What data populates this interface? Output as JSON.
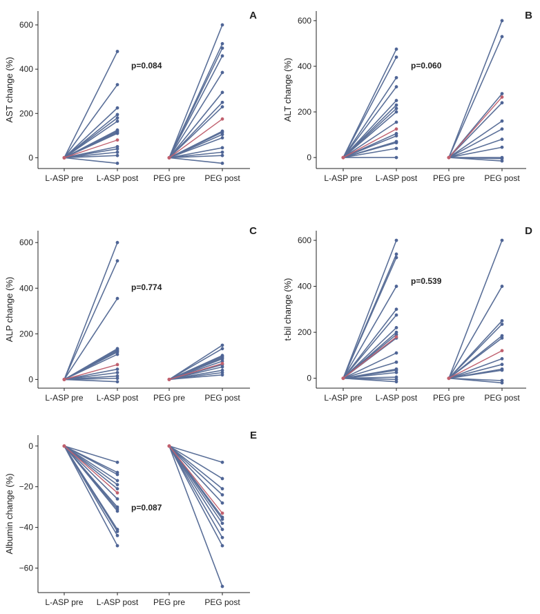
{
  "figure": {
    "line_color": "#5a6f98",
    "highlight_color": "#c0606e",
    "point_color": "#4f6596"
  },
  "chart_data": [
    {
      "type": "line",
      "panel_label": "A",
      "title": "",
      "xlabel": "",
      "ylabel": "AST change (%)",
      "categories": [
        "L-ASP pre",
        "L-ASP post",
        "PEG pre",
        "PEG post"
      ],
      "ylim": [
        -30,
        650
      ],
      "yticks": [
        0,
        200,
        400,
        600
      ],
      "pvalue": "p=0.084",
      "lasp_pre": 0,
      "lasp_post": [
        480,
        330,
        225,
        195,
        180,
        165,
        125,
        120,
        115,
        110,
        80,
        50,
        40,
        25,
        10,
        -25
      ],
      "lasp_highlight_index": 10,
      "peg_pre": 0,
      "peg_post": [
        600,
        515,
        495,
        460,
        385,
        295,
        250,
        230,
        175,
        120,
        115,
        105,
        90,
        45,
        25,
        10,
        -25
      ],
      "peg_highlight_index": 8
    },
    {
      "type": "line",
      "panel_label": "B",
      "title": "",
      "xlabel": "",
      "ylabel": "ALT change (%)",
      "categories": [
        "L-ASP pre",
        "L-ASP post",
        "PEG pre",
        "PEG post"
      ],
      "ylim": [
        -30,
        630
      ],
      "yticks": [
        0,
        200,
        400,
        600
      ],
      "pvalue": "p=0.060",
      "lasp_pre": 0,
      "lasp_post": [
        475,
        440,
        350,
        310,
        250,
        230,
        215,
        200,
        155,
        125,
        105,
        95,
        70,
        65,
        40,
        0
      ],
      "lasp_highlight_index": 9,
      "peg_pre": 0,
      "peg_post": [
        600,
        530,
        280,
        265,
        240,
        160,
        125,
        80,
        45,
        0,
        -5,
        -15
      ],
      "peg_highlight_index": 3
    },
    {
      "type": "line",
      "panel_label": "C",
      "title": "",
      "xlabel": "",
      "ylabel": "ALP change (%)",
      "categories": [
        "L-ASP pre",
        "L-ASP post",
        "PEG pre",
        "PEG post"
      ],
      "ylim": [
        -20,
        640
      ],
      "yticks": [
        0,
        200,
        400,
        600
      ],
      "pvalue": "p=0.774",
      "lasp_pre": 0,
      "lasp_post": [
        600,
        520,
        355,
        135,
        130,
        125,
        120,
        110,
        65,
        45,
        30,
        15,
        5,
        -10
      ],
      "lasp_highlight_index": 8,
      "peg_pre": 0,
      "peg_post": [
        150,
        135,
        105,
        100,
        95,
        90,
        80,
        70,
        65,
        55,
        40,
        30,
        20
      ],
      "peg_highlight_index": 7
    },
    {
      "type": "line",
      "panel_label": "D",
      "title": "",
      "xlabel": "",
      "ylabel": "t-bil change (%)",
      "categories": [
        "L-ASP pre",
        "L-ASP post",
        "PEG pre",
        "PEG post"
      ],
      "ylim": [
        -25,
        630
      ],
      "yticks": [
        0,
        200,
        400,
        600
      ],
      "pvalue": "p=0.539",
      "lasp_pre": 0,
      "lasp_post": [
        600,
        540,
        525,
        400,
        300,
        275,
        220,
        200,
        190,
        180,
        175,
        110,
        70,
        40,
        35,
        25,
        5,
        -5,
        -15
      ],
      "lasp_highlight_index": 9,
      "peg_pre": 0,
      "peg_post": [
        600,
        400,
        250,
        235,
        185,
        175,
        120,
        85,
        60,
        40,
        35,
        -10,
        -20
      ],
      "peg_highlight_index": 6
    },
    {
      "type": "line",
      "panel_label": "E",
      "title": "",
      "xlabel": "",
      "ylabel": "Albumin change (%)",
      "categories": [
        "L-ASP pre",
        "L-ASP post",
        "PEG pre",
        "PEG post"
      ],
      "ylim": [
        -70,
        4
      ],
      "yticks": [
        0,
        -20,
        -40,
        -60
      ],
      "pvalue": "p=0.087",
      "lasp_pre": 0,
      "lasp_post": [
        -8,
        -13,
        -14,
        -17,
        -19,
        -21,
        -23,
        -26,
        -30,
        -31,
        -32,
        -41,
        -42,
        -44,
        -49
      ],
      "lasp_highlight_index": 6,
      "peg_pre": 0,
      "peg_post": [
        -8,
        -16,
        -21,
        -24,
        -28,
        -33,
        -35,
        -36,
        -38,
        -41,
        -45,
        -49,
        -69
      ],
      "peg_highlight_index": 5
    }
  ]
}
